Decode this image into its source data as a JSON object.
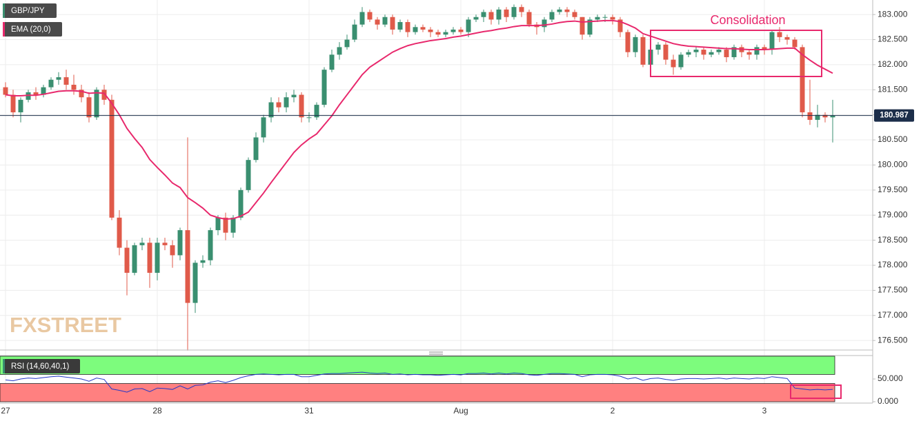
{
  "chart_data": [
    {
      "type": "candlestick",
      "title": "GBP/JPY",
      "up_color": "#3a8f70",
      "down_color": "#e05a4a",
      "categories": [
        "27",
        null,
        null,
        null,
        null,
        null,
        null,
        null,
        null,
        null,
        null,
        null,
        null,
        null,
        null,
        null,
        null,
        null,
        null,
        null,
        "28",
        null,
        null,
        null,
        null,
        null,
        null,
        null,
        null,
        null,
        null,
        null,
        null,
        null,
        null,
        null,
        null,
        null,
        null,
        null,
        "31",
        null,
        null,
        null,
        null,
        null,
        null,
        null,
        null,
        null,
        null,
        null,
        null,
        null,
        null,
        null,
        null,
        null,
        null,
        null,
        "Aug",
        null,
        null,
        null,
        null,
        null,
        null,
        null,
        null,
        null,
        null,
        null,
        null,
        null,
        null,
        null,
        null,
        null,
        null,
        null,
        "2",
        null,
        null,
        null,
        null,
        null,
        null,
        null,
        null,
        null,
        null,
        null,
        null,
        null,
        null,
        null,
        null,
        null,
        null,
        null,
        "3",
        null,
        null,
        null,
        null,
        null,
        null,
        null,
        null,
        null
      ],
      "open": [
        181.55,
        181.4,
        181.05,
        181.3,
        181.45,
        181.4,
        181.55,
        181.7,
        181.75,
        181.6,
        181.5,
        181.35,
        180.95,
        181.5,
        181.3,
        178.95,
        178.35,
        177.85,
        178.4,
        178.45,
        177.85,
        178.45,
        178.4,
        178.2,
        178.7,
        177.25,
        178.05,
        178.1,
        178.7,
        178.95,
        178.65,
        178.95,
        179.5,
        180.1,
        180.55,
        180.95,
        181.25,
        181.15,
        181.35,
        181.4,
        180.95,
        180.95,
        181.2,
        181.9,
        182.2,
        182.35,
        182.5,
        182.8,
        183.05,
        182.9,
        182.8,
        182.95,
        182.7,
        182.85,
        182.65,
        182.75,
        182.7,
        182.65,
        182.6,
        182.65,
        182.7,
        182.65,
        182.9,
        182.95,
        183.05,
        182.9,
        183.1,
        182.95,
        183.15,
        183.05,
        182.8,
        182.75,
        182.9,
        183.05,
        183.1,
        183.05,
        182.95,
        182.6,
        182.9,
        182.95,
        182.95,
        182.9,
        182.65,
        182.25,
        182.55,
        182.0,
        182.3,
        182.4,
        182.1,
        181.95,
        182.2,
        182.25,
        182.3,
        182.2,
        182.25,
        182.3,
        182.15,
        182.35,
        182.25,
        182.2,
        182.35,
        182.3,
        182.65,
        182.55,
        182.5,
        182.35,
        181.05,
        180.9,
        181.0,
        180.95
      ],
      "high": [
        181.65,
        181.5,
        181.35,
        181.5,
        181.55,
        181.6,
        181.75,
        181.85,
        181.9,
        181.8,
        181.6,
        181.45,
        181.55,
        181.6,
        181.4,
        179.1,
        178.5,
        178.45,
        178.55,
        178.55,
        178.55,
        178.55,
        178.5,
        178.75,
        180.55,
        178.1,
        178.2,
        178.75,
        179.0,
        179.05,
        179.0,
        179.55,
        180.15,
        180.65,
        181.0,
        181.35,
        181.35,
        181.45,
        181.5,
        181.45,
        181.05,
        181.25,
        181.95,
        182.3,
        182.45,
        182.6,
        182.9,
        183.15,
        183.1,
        182.95,
        183.0,
        183.0,
        182.9,
        182.9,
        182.8,
        182.8,
        182.75,
        182.7,
        182.7,
        182.75,
        182.75,
        182.95,
        183.0,
        183.1,
        183.1,
        183.15,
        183.15,
        183.2,
        183.2,
        183.1,
        182.85,
        182.95,
        183.1,
        183.15,
        183.15,
        183.1,
        182.95,
        182.95,
        183.0,
        183.0,
        183.0,
        182.95,
        182.7,
        182.6,
        182.6,
        182.35,
        182.45,
        182.45,
        182.2,
        182.25,
        182.3,
        182.35,
        182.35,
        182.3,
        182.35,
        182.35,
        182.4,
        182.4,
        182.3,
        182.4,
        182.4,
        182.7,
        182.75,
        182.6,
        182.55,
        182.4,
        181.7,
        181.2,
        181.05,
        181.3
      ],
      "low": [
        181.35,
        180.95,
        180.85,
        181.25,
        181.3,
        181.35,
        181.5,
        181.6,
        181.5,
        181.4,
        181.25,
        180.85,
        180.9,
        181.2,
        178.9,
        178.2,
        177.4,
        177.8,
        178.3,
        177.55,
        177.7,
        178.3,
        177.95,
        178.1,
        176.3,
        177.05,
        177.95,
        178.0,
        178.6,
        178.5,
        178.55,
        178.9,
        179.45,
        180.05,
        180.45,
        180.85,
        181.05,
        181.05,
        181.25,
        180.85,
        180.85,
        180.9,
        181.15,
        181.85,
        182.1,
        182.3,
        182.45,
        182.75,
        182.85,
        182.7,
        182.75,
        182.6,
        182.65,
        182.55,
        182.6,
        182.65,
        182.55,
        182.55,
        182.55,
        182.6,
        182.6,
        182.55,
        182.85,
        182.85,
        182.8,
        182.8,
        182.85,
        182.9,
        182.95,
        182.75,
        182.6,
        182.65,
        182.85,
        183.0,
        182.95,
        182.9,
        182.5,
        182.55,
        182.85,
        182.85,
        182.8,
        182.55,
        182.15,
        182.15,
        181.95,
        181.9,
        182.2,
        182.0,
        181.8,
        181.9,
        182.15,
        182.15,
        182.1,
        182.15,
        182.2,
        182.05,
        182.1,
        182.15,
        182.1,
        182.1,
        182.2,
        182.2,
        182.45,
        182.4,
        182.3,
        180.95,
        180.8,
        180.75,
        180.85,
        180.45
      ],
      "close": [
        181.4,
        181.05,
        181.3,
        181.45,
        181.4,
        181.55,
        181.7,
        181.75,
        181.6,
        181.5,
        181.35,
        180.95,
        181.5,
        181.3,
        178.95,
        178.35,
        177.85,
        178.4,
        178.45,
        177.85,
        178.45,
        178.4,
        178.2,
        178.7,
        177.25,
        178.05,
        178.1,
        178.7,
        178.95,
        178.65,
        178.95,
        179.5,
        180.1,
        180.55,
        180.95,
        181.25,
        181.15,
        181.35,
        181.4,
        180.95,
        180.95,
        181.2,
        181.9,
        182.2,
        182.35,
        182.5,
        182.8,
        183.05,
        182.9,
        182.8,
        182.95,
        182.7,
        182.85,
        182.65,
        182.75,
        182.7,
        182.65,
        182.6,
        182.65,
        182.7,
        182.65,
        182.9,
        182.95,
        183.05,
        182.9,
        183.1,
        182.95,
        183.15,
        183.05,
        182.8,
        182.75,
        182.9,
        183.05,
        183.1,
        183.05,
        182.95,
        182.6,
        182.9,
        182.95,
        182.95,
        182.9,
        182.65,
        182.25,
        182.55,
        182.0,
        182.3,
        182.4,
        182.1,
        181.95,
        182.2,
        182.25,
        182.3,
        182.2,
        182.25,
        182.3,
        182.15,
        182.35,
        182.25,
        182.2,
        182.35,
        182.3,
        182.65,
        182.55,
        182.5,
        182.35,
        181.05,
        180.9,
        181.0,
        180.95,
        180.987
      ],
      "overlays": [
        {
          "name": "EMA (20,0)",
          "color": "#e8286c",
          "values": [
            181.4,
            181.38,
            181.38,
            181.39,
            181.39,
            181.41,
            181.44,
            181.47,
            181.48,
            181.48,
            181.47,
            181.43,
            181.44,
            181.43,
            181.23,
            181.0,
            180.73,
            180.53,
            180.35,
            180.11,
            179.95,
            179.8,
            179.64,
            179.55,
            179.35,
            179.25,
            179.14,
            179.0,
            178.95,
            178.92,
            178.93,
            178.98,
            179.06,
            179.25,
            179.44,
            179.65,
            179.85,
            180.05,
            180.25,
            180.4,
            180.52,
            180.62,
            180.8,
            180.98,
            181.2,
            181.4,
            181.6,
            181.8,
            181.95,
            182.05,
            182.15,
            182.25,
            182.32,
            182.38,
            182.42,
            182.45,
            182.48,
            182.5,
            182.52,
            182.55,
            182.57,
            182.6,
            182.63,
            182.66,
            182.68,
            182.71,
            182.73,
            182.76,
            182.78,
            182.78,
            182.78,
            182.79,
            182.81,
            182.84,
            182.86,
            182.87,
            182.85,
            182.86,
            182.87,
            182.88,
            182.88,
            182.86,
            182.8,
            182.73,
            182.62,
            182.57,
            182.52,
            182.47,
            182.42,
            182.39,
            182.37,
            182.36,
            182.35,
            182.34,
            182.33,
            182.32,
            182.32,
            182.31,
            182.3,
            182.3,
            182.3,
            182.31,
            182.32,
            182.33,
            182.33,
            182.2,
            182.09,
            181.99,
            181.91,
            181.83
          ]
        }
      ],
      "ylim": [
        176.31,
        183.29
      ],
      "yticks": [
        {
          "value": 176.5,
          "label": "176.500"
        },
        {
          "value": 177,
          "label": "177.000"
        },
        {
          "value": 177.5,
          "label": "177.500"
        },
        {
          "value": 178,
          "label": "178.000"
        },
        {
          "value": 178.5,
          "label": "178.500"
        },
        {
          "value": 179,
          "label": "179.000"
        },
        {
          "value": 179.5,
          "label": "179.500"
        },
        {
          "value": 180,
          "label": "180.000"
        },
        {
          "value": 180.5,
          "label": "180.500"
        },
        {
          "value": 181,
          "label": "181.000"
        },
        {
          "value": 181.5,
          "label": "181.500"
        },
        {
          "value": 182,
          "label": "182.000"
        },
        {
          "value": 182.5,
          "label": "182.500"
        },
        {
          "value": 183,
          "label": "183.000"
        }
      ],
      "grid": true,
      "last_price": 180.987,
      "last_price_color": "#1c2e4a",
      "annotation": "Consolidation",
      "watermark": "FXSTREET"
    },
    {
      "type": "line",
      "title": "RSI (14,60,40,1)",
      "color": "#2236c8",
      "values": [
        48,
        46,
        50,
        52,
        51,
        53,
        55,
        56,
        54,
        52,
        50,
        45,
        52,
        49,
        28,
        25,
        21,
        28,
        29,
        22,
        30,
        29,
        27,
        35,
        28,
        36,
        37,
        43,
        46,
        42,
        47,
        53,
        57,
        60,
        61,
        60,
        59,
        60,
        60,
        55,
        55,
        58,
        61,
        62,
        62,
        63,
        64,
        65,
        63,
        62,
        63,
        60,
        61,
        59,
        60,
        59,
        59,
        58,
        59,
        60,
        59,
        62,
        62,
        63,
        61,
        63,
        61,
        63,
        62,
        59,
        58,
        60,
        62,
        62,
        61,
        60,
        55,
        59,
        60,
        60,
        59,
        56,
        50,
        53,
        47,
        51,
        52,
        49,
        47,
        50,
        51,
        51,
        50,
        51,
        52,
        50,
        52,
        51,
        50,
        52,
        51,
        55,
        53,
        51,
        30,
        28,
        26,
        27,
        26,
        27
      ],
      "ylim": [
        0,
        100
      ],
      "yticks": [
        {
          "value": 0,
          "label": "0.000"
        },
        {
          "value": 50,
          "label": "50.000"
        }
      ],
      "bands": [
        {
          "range": [
            60,
            100
          ],
          "color": "#7dfc7d"
        },
        {
          "range": [
            0,
            40
          ],
          "color": "#ff8080"
        }
      ]
    }
  ]
}
